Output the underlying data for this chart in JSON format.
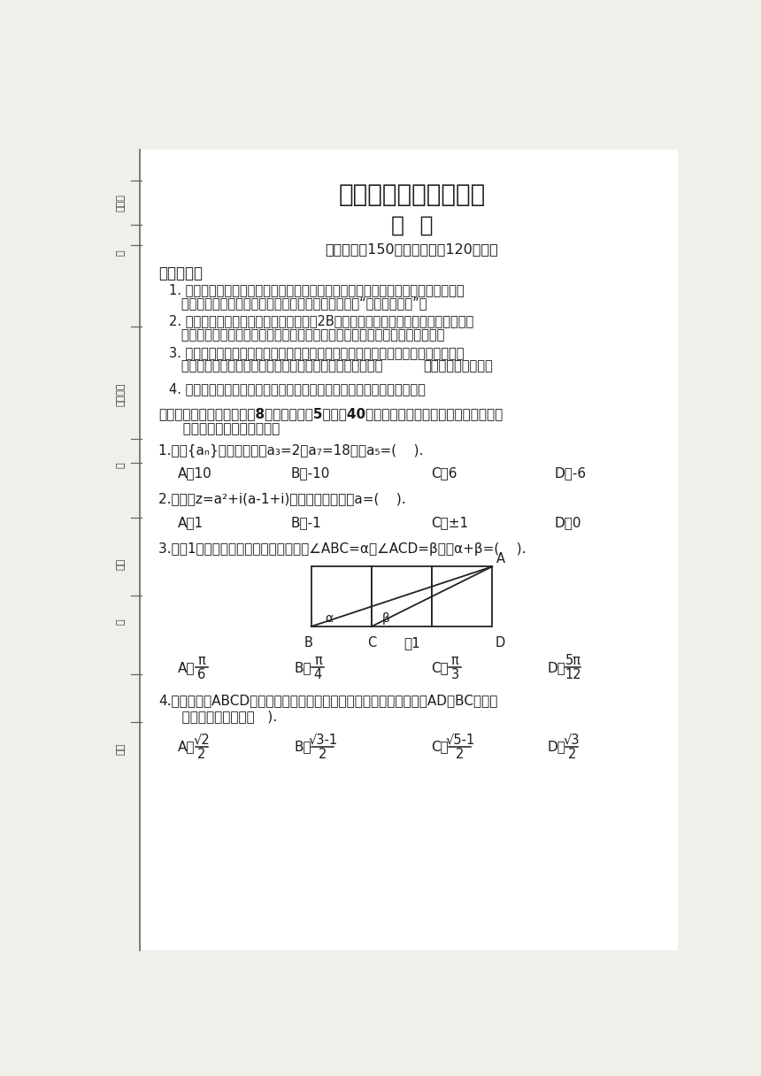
{
  "bg_color": "#f0f0eb",
  "paper_color": "#ffffff",
  "title1": "广西名校高考模拟试卷",
  "title2": "数  学",
  "subtitle": "（本卷满分150分，考试时间120分钟）",
  "notice_title": "注意事项：",
  "n1a": "1. 答题前，考生请务必将自己的姓名、准考证号用黑色字迹的签字笔或钢笔分别填写",
  "n1b": "   在试卷和答题卡上，并将条形码横贴在答题卡右上角“条形码粘贴处”。",
  "n2a": "2. 作答选择题时，选出每小题答案后，用2B铅笔把答题卡上对应题目选项的答案标号",
  "n2b": "   涂黑。如需改动，用橡皮擦干净后，再选涂其他答案，答案不能答在试卷上。",
  "n3a": "3. 非选择题必须用黑色字迹签字笔或钢笔作答，答案必须写在答题卡各题目指定区域",
  "n3b": "   内，如需改动，先划掉原来的答案，然后再写上新的答案。",
  "n3b_bold": "在试卷上答题无效。",
  "n4": "4. 考生必须保持答题卡的整洁。考试结束后，将试卷和答题卡一并交回。",
  "sec1a": "一、单项选择题（本大题共8小题，每小题5分，共40分。在每小题给出的四个选项中，只有",
  "sec1b": "   一项是符合题目要求的。）",
  "q1": "1.已知{aₙ}是等比数列，a₃=2，a₇=18，则a₅=(    ).",
  "q1_choices": [
    "A．10",
    "B．-10",
    "C．6",
    "D．-6"
  ],
  "q2": "2.若复数z=a²+i(a-1+i)是纯虚数，则实数a=(    ).",
  "q2_choices": [
    "A．1",
    "B．-1",
    "C．±1",
    "D．0"
  ],
  "q3": "3.如图1，有三个相同的正方形相接，若∠ABC=α，∠ACD=β，则α+β=(    ).",
  "q3_labels": [
    "A．",
    "B．",
    "C．",
    "D．"
  ],
  "q3_nums": [
    "π",
    "π",
    "π",
    "5π"
  ],
  "q3_dens": [
    "6",
    "4",
    "3",
    "12"
  ],
  "q4a": "4.已知正方形ABCD的四个顶点都在椭圆上，椭圆的两个焦点分别在边AD和BC上，则",
  "q4b": "   该椭圆的离心率为（   ).",
  "q4_labels": [
    "A．",
    "B．",
    "C．",
    "D．"
  ],
  "q4_nums": [
    "√2",
    "√3-1",
    "√5-1",
    "√3"
  ],
  "q4_dens": [
    "2",
    "2",
    "2",
    "2"
  ],
  "text_color": "#1a1a1a",
  "line_color": "#444444"
}
